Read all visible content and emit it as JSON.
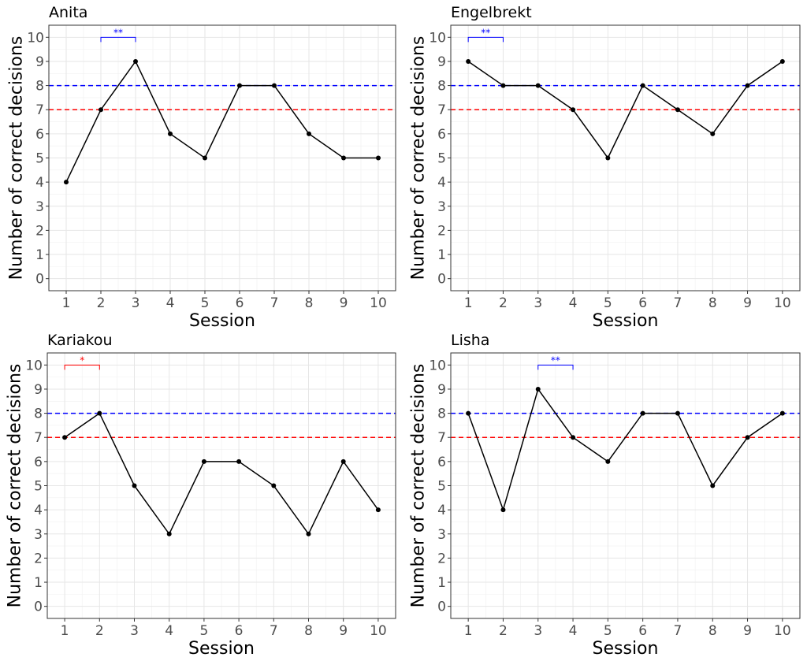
{
  "chart_data": [
    {
      "type": "line",
      "title": "Anita",
      "xlabel": "Session",
      "ylabel": "Number of correct decisions",
      "x": [
        1,
        2,
        3,
        4,
        5,
        6,
        7,
        8,
        9,
        10
      ],
      "values": [
        4,
        7,
        9,
        6,
        5,
        8,
        8,
        6,
        5,
        5
      ],
      "xlim": [
        0.5,
        10.5
      ],
      "ylim": [
        -0.5,
        10.5
      ],
      "yticks": [
        0,
        1,
        2,
        3,
        4,
        5,
        6,
        7,
        8,
        9,
        10
      ],
      "xticks": [
        1,
        2,
        3,
        4,
        5,
        6,
        7,
        8,
        9,
        10
      ],
      "reference_lines": [
        {
          "y": 8,
          "color": "#0000ff",
          "style": "dashed"
        },
        {
          "y": 7,
          "color": "#ff0000",
          "style": "dashed"
        }
      ],
      "annotation": {
        "x1": 2,
        "x2": 3,
        "y": 10,
        "label": "**",
        "color": "#0000ff"
      },
      "grid": true
    },
    {
      "type": "line",
      "title": "Engelbrekt",
      "xlabel": "Session",
      "ylabel": "Number of correct decisions",
      "x": [
        1,
        2,
        3,
        4,
        5,
        6,
        7,
        8,
        9,
        10
      ],
      "values": [
        9,
        8,
        8,
        7,
        5,
        8,
        7,
        6,
        8,
        9
      ],
      "xlim": [
        0.5,
        10.5
      ],
      "ylim": [
        -0.5,
        10.5
      ],
      "yticks": [
        0,
        1,
        2,
        3,
        4,
        5,
        6,
        7,
        8,
        9,
        10
      ],
      "xticks": [
        1,
        2,
        3,
        4,
        5,
        6,
        7,
        8,
        9,
        10
      ],
      "reference_lines": [
        {
          "y": 8,
          "color": "#0000ff",
          "style": "dashed"
        },
        {
          "y": 7,
          "color": "#ff0000",
          "style": "dashed"
        }
      ],
      "annotation": {
        "x1": 1,
        "x2": 2,
        "y": 10,
        "label": "**",
        "color": "#0000ff"
      },
      "grid": true
    },
    {
      "type": "line",
      "title": "Kariakou",
      "xlabel": "Session",
      "ylabel": "Number of correct decisions",
      "x": [
        1,
        2,
        3,
        4,
        5,
        6,
        7,
        8,
        9,
        10
      ],
      "values": [
        7,
        8,
        5,
        3,
        6,
        6,
        5,
        3,
        6,
        4
      ],
      "xlim": [
        0.5,
        10.5
      ],
      "ylim": [
        -0.5,
        10.5
      ],
      "yticks": [
        0,
        1,
        2,
        3,
        4,
        5,
        6,
        7,
        8,
        9,
        10
      ],
      "xticks": [
        1,
        2,
        3,
        4,
        5,
        6,
        7,
        8,
        9,
        10
      ],
      "reference_lines": [
        {
          "y": 8,
          "color": "#0000ff",
          "style": "dashed"
        },
        {
          "y": 7,
          "color": "#ff0000",
          "style": "dashed"
        }
      ],
      "annotation": {
        "x1": 1,
        "x2": 2,
        "y": 10,
        "label": "*",
        "color": "#ff0000"
      },
      "grid": true
    },
    {
      "type": "line",
      "title": "Lisha",
      "xlabel": "Session",
      "ylabel": "Number of correct decisions",
      "x": [
        1,
        2,
        3,
        4,
        5,
        6,
        7,
        8,
        9,
        10
      ],
      "values": [
        8,
        4,
        9,
        7,
        6,
        8,
        8,
        5,
        7,
        8
      ],
      "xlim": [
        0.5,
        10.5
      ],
      "ylim": [
        -0.5,
        10.5
      ],
      "yticks": [
        0,
        1,
        2,
        3,
        4,
        5,
        6,
        7,
        8,
        9,
        10
      ],
      "xticks": [
        1,
        2,
        3,
        4,
        5,
        6,
        7,
        8,
        9,
        10
      ],
      "reference_lines": [
        {
          "y": 8,
          "color": "#0000ff",
          "style": "dashed"
        },
        {
          "y": 7,
          "color": "#ff0000",
          "style": "dashed"
        }
      ],
      "annotation": {
        "x1": 3,
        "x2": 4,
        "y": 10,
        "label": "**",
        "color": "#0000ff"
      },
      "grid": true
    }
  ]
}
